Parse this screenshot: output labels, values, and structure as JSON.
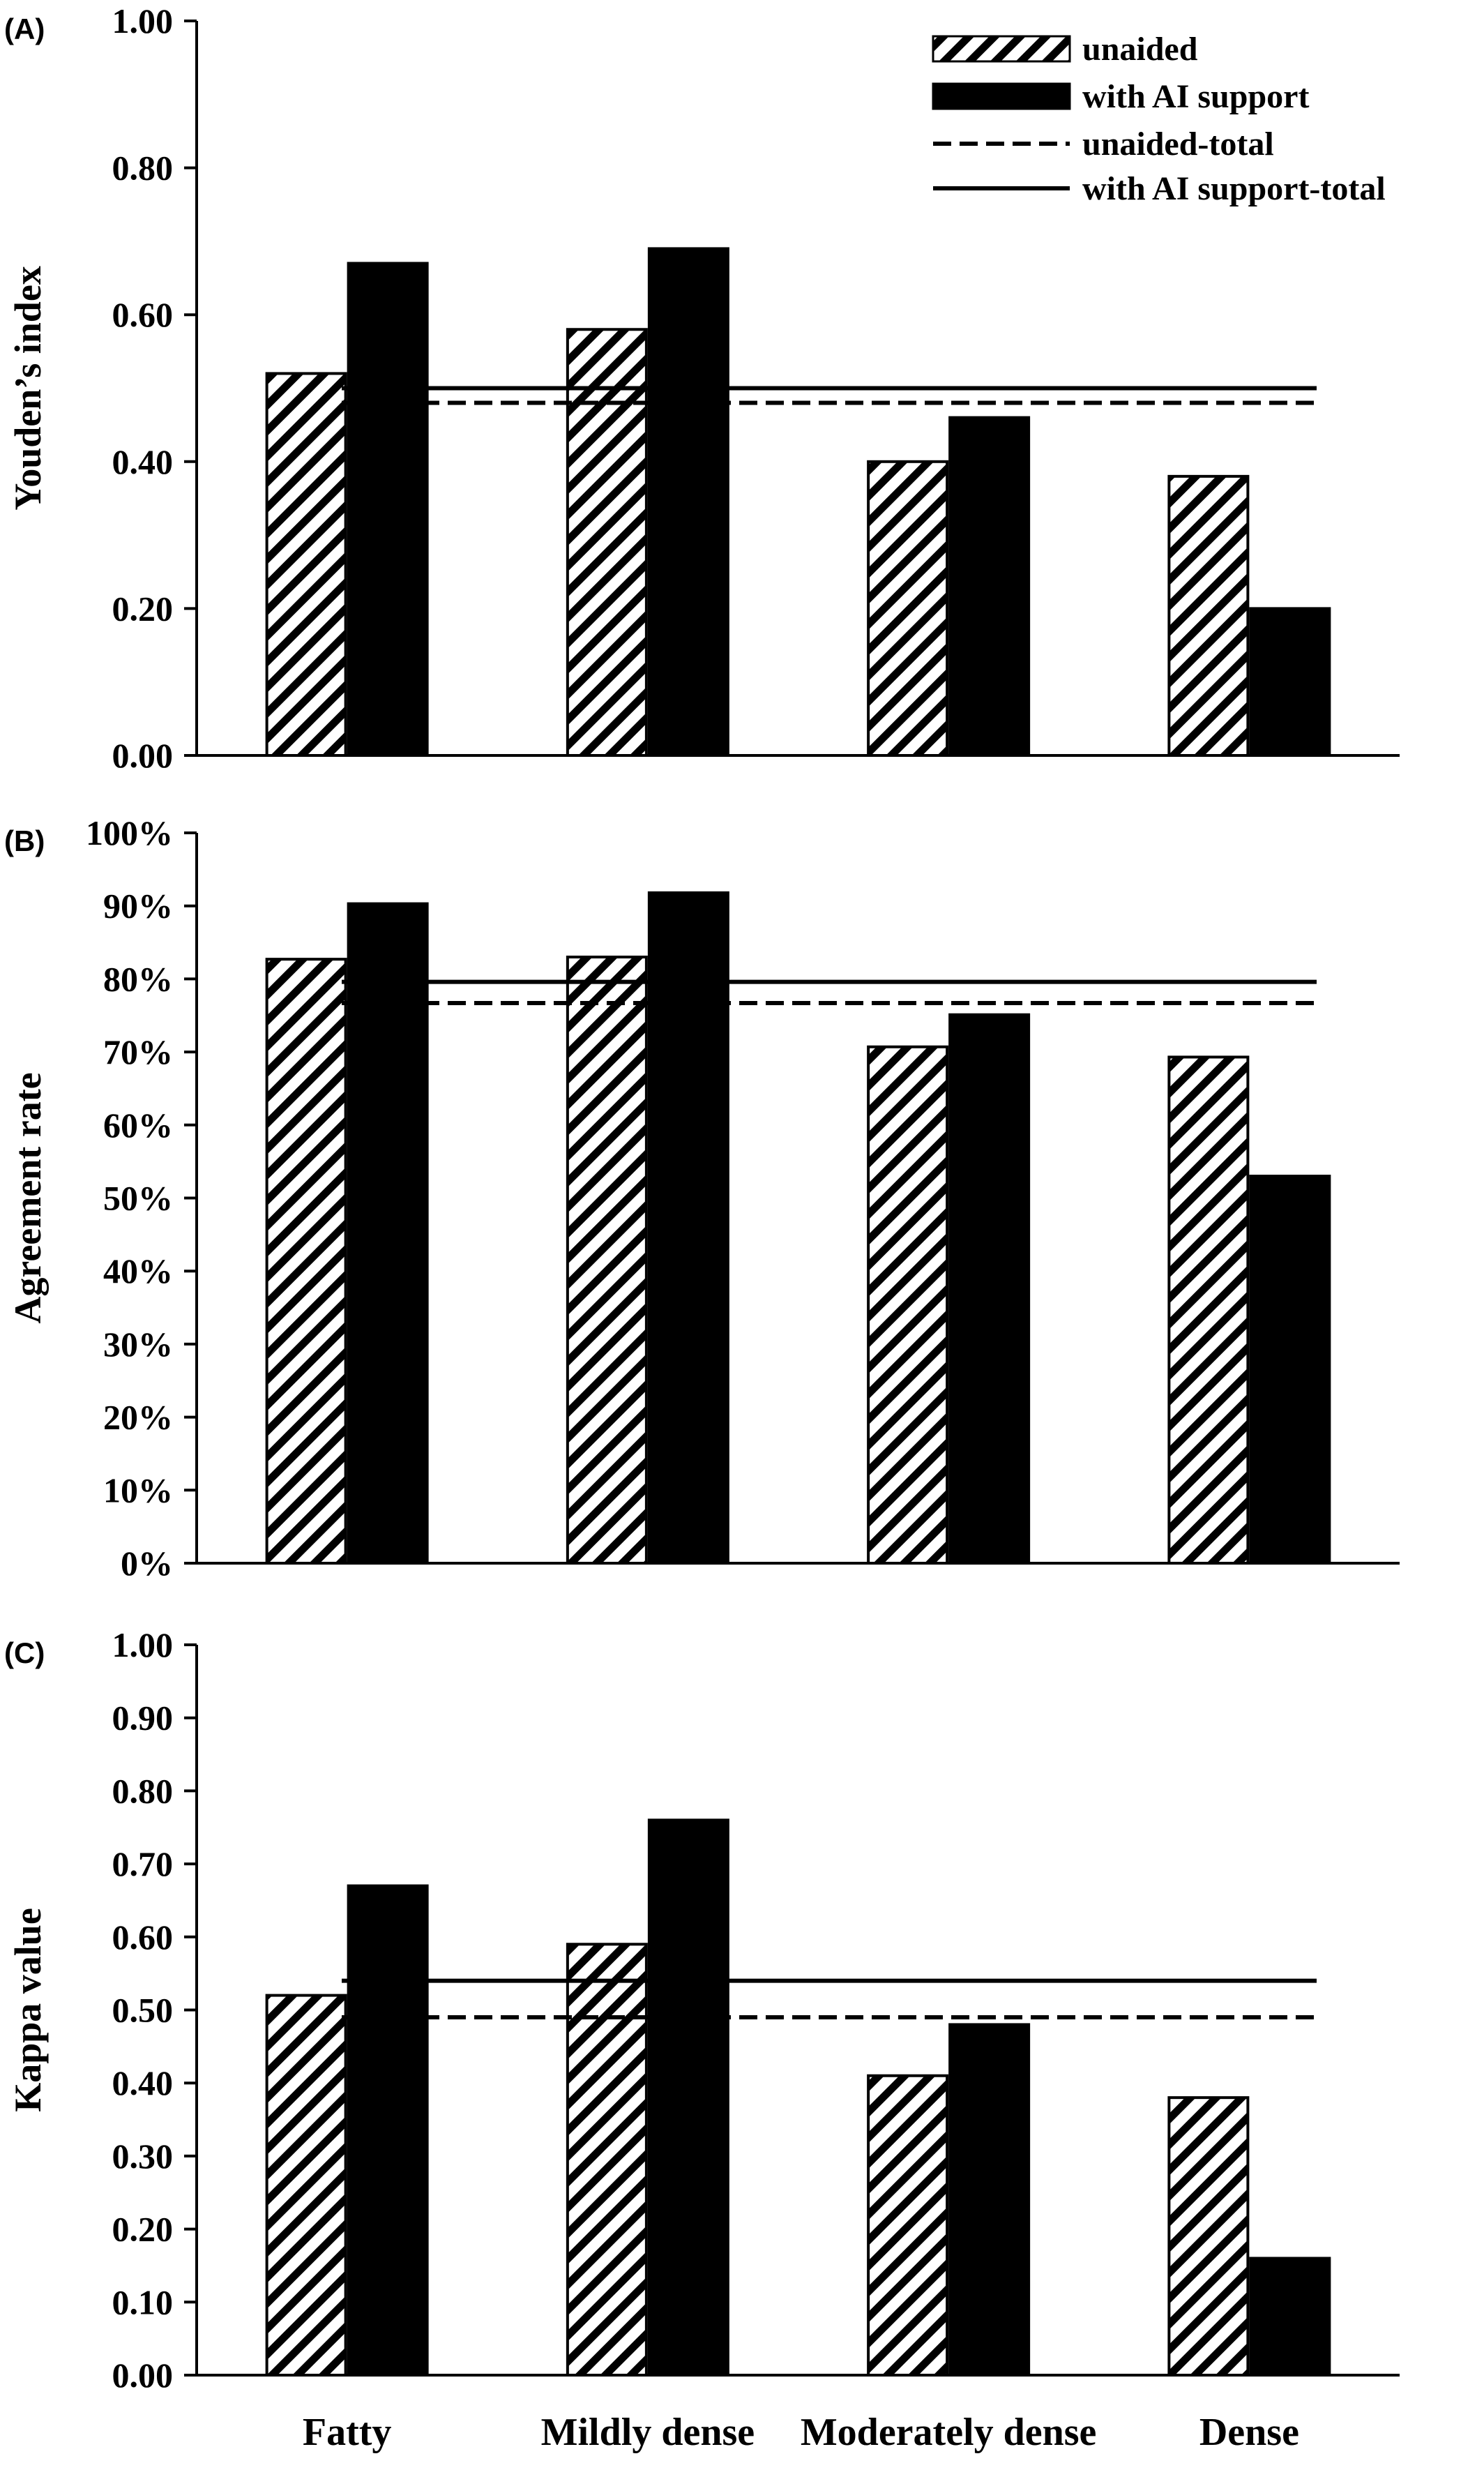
{
  "legend": {
    "placement": "top-right",
    "items": [
      {
        "key": "unaided",
        "label": "unaided",
        "style": "hatched-bar"
      },
      {
        "key": "ai",
        "label": "with AI support",
        "style": "solid-bar"
      },
      {
        "key": "unaided_total",
        "label": "unaided-total",
        "style": "dashed-line"
      },
      {
        "key": "ai_total",
        "label": "with AI support-total",
        "style": "solid-line"
      }
    ]
  },
  "colors": {
    "bar_fill_solid": "#000000",
    "hatch": "#000000",
    "background": "#ffffff"
  },
  "chart_data": [
    {
      "type": "bar",
      "panel_label": "(A)",
      "ylabel": "Youden’s index",
      "categories": [
        "Fatty",
        "Mildly dense",
        "Moderately dense",
        "Dense"
      ],
      "ylim": [
        0,
        1.0
      ],
      "yticks": [
        "0.00",
        "0.20",
        "0.40",
        "0.60",
        "0.80",
        "1.00"
      ],
      "ytick_values": [
        0,
        0.2,
        0.4,
        0.6,
        0.8,
        1.0
      ],
      "series": [
        {
          "name": "unaided",
          "values": [
            0.52,
            0.58,
            0.4,
            0.38
          ]
        },
        {
          "name": "with AI support",
          "values": [
            0.67,
            0.69,
            0.46,
            0.2
          ]
        }
      ],
      "reference_lines": [
        {
          "name": "unaided-total",
          "value": 0.48,
          "style": "dashed"
        },
        {
          "name": "with AI support-total",
          "value": 0.5,
          "style": "solid"
        }
      ],
      "grid": false
    },
    {
      "type": "bar",
      "panel_label": "(B)",
      "ylabel": "Agreement rate",
      "categories": [
        "Fatty",
        "Mildly dense",
        "Moderately dense",
        "Dense"
      ],
      "ylim": [
        0,
        100
      ],
      "yticks": [
        "0%",
        "10%",
        "20%",
        "30%",
        "40%",
        "50%",
        "60%",
        "70%",
        "80%",
        "90%",
        "100%"
      ],
      "ytick_values": [
        0,
        10,
        20,
        30,
        40,
        50,
        60,
        70,
        80,
        90,
        100
      ],
      "series": [
        {
          "name": "unaided",
          "values": [
            82.7,
            83.0,
            70.7,
            69.3
          ]
        },
        {
          "name": "with AI support",
          "values": [
            90.3,
            91.8,
            75.1,
            53.0
          ]
        }
      ],
      "reference_lines": [
        {
          "name": "unaided-total",
          "value": 76.7,
          "style": "dashed"
        },
        {
          "name": "with AI support-total",
          "value": 79.6,
          "style": "solid"
        }
      ],
      "grid": false
    },
    {
      "type": "bar",
      "panel_label": "(C)",
      "ylabel": "Kappa value",
      "categories": [
        "Fatty",
        "Mildly dense",
        "Moderately dense",
        "Dense"
      ],
      "ylim": [
        0,
        1.0
      ],
      "yticks": [
        "0.00",
        "0.10",
        "0.20",
        "0.30",
        "0.40",
        "0.50",
        "0.60",
        "0.70",
        "0.80",
        "0.90",
        "1.00"
      ],
      "ytick_values": [
        0,
        0.1,
        0.2,
        0.3,
        0.4,
        0.5,
        0.6,
        0.7,
        0.8,
        0.9,
        1.0
      ],
      "series": [
        {
          "name": "unaided",
          "values": [
            0.52,
            0.59,
            0.41,
            0.38
          ]
        },
        {
          "name": "with AI support",
          "values": [
            0.67,
            0.76,
            0.48,
            0.16
          ]
        }
      ],
      "reference_lines": [
        {
          "name": "unaided-total",
          "value": 0.49,
          "style": "dashed"
        },
        {
          "name": "with AI support-total",
          "value": 0.54,
          "style": "solid"
        }
      ],
      "grid": false
    }
  ]
}
